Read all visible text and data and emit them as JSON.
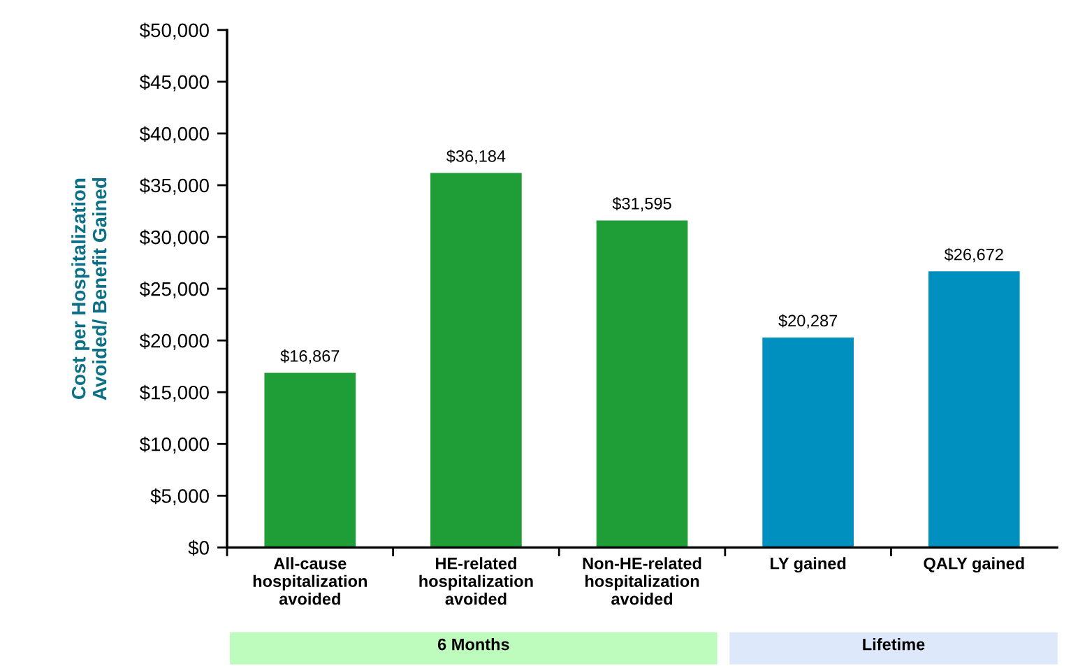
{
  "chart_data": {
    "type": "bar",
    "ylabel": "Cost per Hospitalization\nAvoided/ Benefit Gained",
    "categories": [
      "All-cause\nhospitalization\navoided",
      "HE-related\nhospitalization\navoided",
      "Non-HE-related\nhospitalization\navoided",
      "LY gained",
      "QALY gained"
    ],
    "values": [
      16867,
      36184,
      31595,
      20287,
      26672
    ],
    "colors": [
      "#1f9e37",
      "#1f9e37",
      "#1f9e37",
      "#0090c0",
      "#0090c0"
    ],
    "value_labels": [
      "$16,867",
      "$36,184",
      "$31,595",
      "$20,287",
      "$26,672"
    ],
    "ylim": [
      0,
      50000
    ],
    "yticks": [
      {
        "value": 0,
        "label": "$0"
      },
      {
        "value": 5000,
        "label": "$5,000"
      },
      {
        "value": 10000,
        "label": "$10,000"
      },
      {
        "value": 15000,
        "label": "$15,000"
      },
      {
        "value": 20000,
        "label": "$20,000"
      },
      {
        "value": 25000,
        "label": "$25,000"
      },
      {
        "value": 30000,
        "label": "$30,000"
      },
      {
        "value": 35000,
        "label": "$35,000"
      },
      {
        "value": 40000,
        "label": "$40,000"
      },
      {
        "value": 45000,
        "label": "$45,000"
      },
      {
        "value": 50000,
        "label": "$50,000"
      }
    ],
    "annotations": [
      "6 Months",
      "Lifetime"
    ],
    "grid": false,
    "legend": false
  }
}
